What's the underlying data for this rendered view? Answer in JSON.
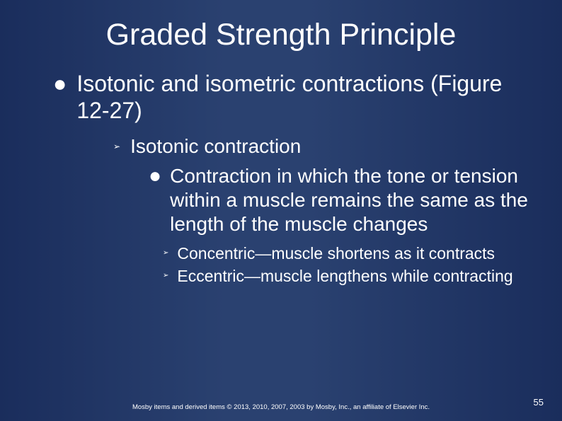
{
  "title": "Graded Strength Principle",
  "level1": {
    "bullet": "●",
    "text": "Isotonic and isometric contractions (Figure 12-27)"
  },
  "level2": {
    "bullet": "➢",
    "text": "Isotonic contraction"
  },
  "level3": {
    "bullet": "●",
    "text": "Contraction in which the tone or tension within a muscle remains the same as the length of the muscle changes"
  },
  "level4a": {
    "bullet": "➢",
    "text": "Concentric—muscle shortens as it contracts"
  },
  "level4b": {
    "bullet": "➢",
    "text": "Eccentric—muscle lengthens while contracting"
  },
  "footer": "Mosby items and derived items © 2013, 2010, 2007, 2003 by Mosby, Inc., an affiliate of Elsevier Inc.",
  "pageNumber": "55",
  "colors": {
    "background_gradient_edge": "#1a2d5c",
    "background_gradient_center": "#2a4170",
    "text": "#ffffff"
  },
  "typography": {
    "title_fontsize": 43,
    "l1_fontsize": 32,
    "l2_fontsize": 28,
    "l3_fontsize": 28,
    "l4_fontsize": 23,
    "footer_fontsize": 9.5,
    "pagenum_fontsize": 13
  }
}
